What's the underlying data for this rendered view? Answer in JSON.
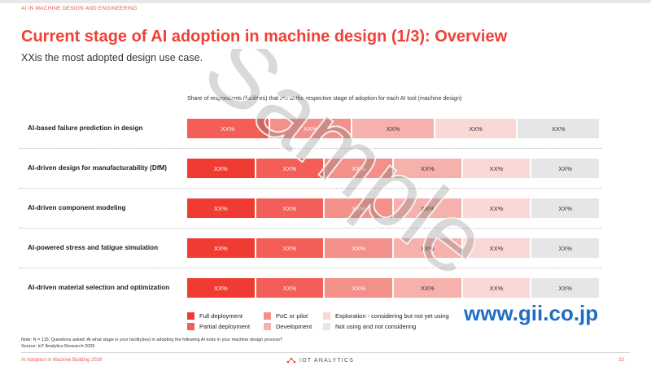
{
  "header": {
    "section_label": "AI IN MACHINE DESIGN AND ENGINEERING",
    "title": "Current stage of AI adoption in machine design (1/3): Overview",
    "subtitle": "XXis the most adopted design use case."
  },
  "chart_data": {
    "type": "bar",
    "stacked": true,
    "orientation": "horizontal",
    "caption": "Share of respondents (facilities) that are at the respective stage of adoption for each AI tool (machine design)",
    "categories": [
      "AI-based failure prediction in design",
      "AI-driven design for manufacturability (DfM)",
      "AI-driven component modeling",
      "AI-powered stress and fatigue simulation",
      "AI-driven material selection and optimization"
    ],
    "series": [
      {
        "name": "Full deployment",
        "color": "#ef3b32",
        "values": [
          "",
          "XX%",
          "XX%",
          "XX%",
          "XX%"
        ]
      },
      {
        "name": "Partial deployment",
        "color": "#f35e58",
        "values": [
          "XX%",
          "XX%",
          "XX%",
          "XX%",
          "XX%"
        ]
      },
      {
        "name": "PoC or pilot",
        "color": "#f4908a",
        "values": [
          "XX%",
          "XX%",
          "XX%",
          "XX%",
          "XX%"
        ]
      },
      {
        "name": "Development",
        "color": "#f7b1ac",
        "values": [
          "XX%",
          "XX%",
          "XX%",
          "XX%",
          "XX%"
        ]
      },
      {
        "name": "Exploration - considering but not yet using",
        "color": "#fad8d5",
        "values": [
          "XX%",
          "XX%",
          "XX%",
          "XX%",
          "XX%"
        ]
      },
      {
        "name": "Not using and not considering",
        "color": "#e6e6e6",
        "values": [
          "XX%",
          "XX%",
          "XX%",
          "XX%",
          "XX%"
        ]
      }
    ],
    "segment_widths": [
      [
        0,
        1,
        1,
        1,
        1,
        1
      ],
      [
        1,
        1,
        1,
        1,
        1,
        1
      ],
      [
        1,
        1,
        1,
        1,
        1,
        1
      ],
      [
        1,
        1,
        1,
        1,
        1,
        1
      ],
      [
        1,
        1,
        1,
        1,
        1,
        1
      ]
    ],
    "legend_position": "bottom",
    "grid": false
  },
  "legend": {
    "items": [
      {
        "label": "Full deployment",
        "color": "#ef3b32"
      },
      {
        "label": "Partial deployment",
        "color": "#f35e58"
      },
      {
        "label": "PoC or pilot",
        "color": "#f4908a"
      },
      {
        "label": "Development",
        "color": "#f7b1ac"
      },
      {
        "label": "Exploration - considering but not yet using",
        "color": "#fad8d5"
      },
      {
        "label": "Not using and not considering",
        "color": "#e6e6e6"
      }
    ]
  },
  "footer": {
    "note": "Note: N = 115; Questions asked: At what stage is your facility(ies) in adopting the following AI tools in your machine design process?",
    "source": "Source: IoT Analytics Research 2026",
    "report": "AI Adoption in Machine Building 2026",
    "brand": "IOT ANALYTICS",
    "page_number": "23"
  },
  "overlays": {
    "watermark": "Sample",
    "gii": "www.gii.co.jp"
  }
}
